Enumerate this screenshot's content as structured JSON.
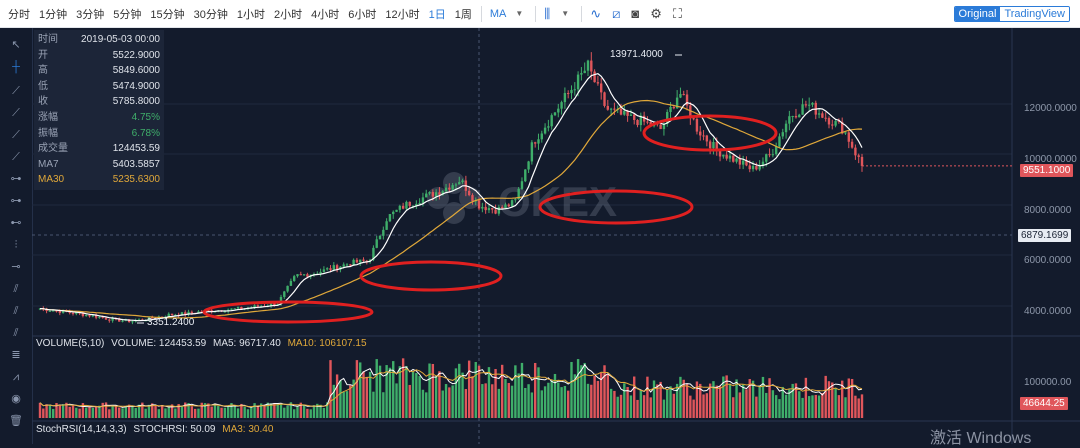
{
  "toolbar": {
    "intervals": [
      "分时",
      "1分钟",
      "3分钟",
      "5分钟",
      "15分钟",
      "30分钟",
      "1小时",
      "2小时",
      "4小时",
      "6小时",
      "12小时",
      "1日",
      "1周"
    ],
    "active_interval": "1日",
    "indicator_label": "MA",
    "view_original": "Original",
    "view_tradingview": "TradingView"
  },
  "info_panel": {
    "rows": [
      {
        "key": "时间",
        "value": "2019-05-03 00:00"
      },
      {
        "key": "开",
        "value": "5522.9000"
      },
      {
        "key": "高",
        "value": "5849.6000"
      },
      {
        "key": "低",
        "value": "5474.9000"
      },
      {
        "key": "收",
        "value": "5785.8000"
      },
      {
        "key": "涨幅",
        "value": "4.75%"
      },
      {
        "key": "振幅",
        "value": "6.78%"
      },
      {
        "key": "成交量",
        "value": "124453.59"
      },
      {
        "key": "MA7",
        "value": "5403.5857"
      },
      {
        "key": "MA30",
        "value": "5235.6300"
      }
    ]
  },
  "watermark_logo": "OKEX",
  "price_axis": {
    "ticks": [
      "12000.0000",
      "10000.0000",
      "8000.0000",
      "6000.0000",
      "4000.0000"
    ],
    "last_price": "9551.1000",
    "crosshair_price": "6879.1699"
  },
  "annotations": {
    "high": "13971.4000",
    "low": "3351.2400"
  },
  "volume_legend": {
    "title": "VOLUME(5,10)",
    "volume": "VOLUME: 124453.59",
    "ma5": "MA5: 96717.40",
    "ma10": "MA10: 106107.15"
  },
  "volume_axis": {
    "tick": "100000.00",
    "last": "46644.25"
  },
  "stochrsi_legend": {
    "title": "StochRSI(14,14,3,3)",
    "stochrsi": "STOCHRSI: 50.09",
    "ma3": "MA3: 30.40"
  },
  "os_watermark": "激活 Windows",
  "colors": {
    "up": "#3fae6a",
    "down": "#e0565b",
    "ma7": "#ffffff",
    "ma30": "#e0a83a",
    "highlight_ellipse": "#e02020",
    "accent": "#2b7bd8"
  },
  "chart_data": {
    "type": "candlestick",
    "title": "",
    "price_range": [
      3000,
      14500
    ],
    "close_path": [
      3900,
      3800,
      3700,
      3600,
      3450,
      3400,
      3500,
      3650,
      3700,
      3800,
      3850,
      3900,
      4000,
      4100,
      5200,
      5300,
      5500,
      5700,
      5800,
      7500,
      8000,
      8300,
      8600,
      9000,
      8000,
      7800,
      8100,
      10500,
      11500,
      12500,
      13500,
      11800,
      11500,
      11300,
      11000,
      12500,
      11000,
      10200,
      9800,
      9400,
      10000,
      11500,
      12000,
      11500,
      11000,
      9551
    ]
  }
}
